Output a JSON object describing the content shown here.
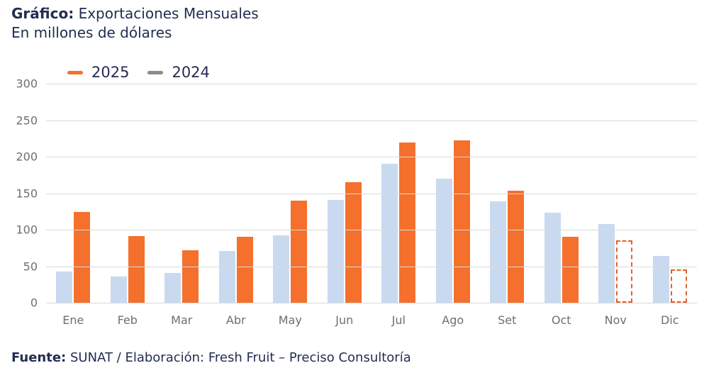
{
  "header": {
    "title_prefix": "Gráfico:",
    "title": "Exportaciones Mensuales",
    "subtitle": "En millones de dólares"
  },
  "legend": {
    "position": "top-left",
    "items": [
      {
        "label": "2025",
        "marker_color": "#F4702C"
      },
      {
        "label": "2024",
        "marker_color": "#8C8C8C"
      }
    ]
  },
  "footer": {
    "source_prefix": "Fuente:",
    "source_text": "SUNAT / Elaboración: Fresh Fruit – Preciso Consultoría"
  },
  "colors": {
    "navy": "#232D52",
    "axis-gray": "#6F6F6F",
    "grid": "#D9D9D9",
    "orange": "#F4702C",
    "light-blue": "#C9DAF0"
  },
  "chart_data": {
    "type": "bar",
    "title": "Gráfico: Exportaciones Mensuales",
    "subtitle": "En millones de dólares",
    "xlabel": "",
    "ylabel": "Millones de dólares",
    "ylim": [
      0,
      300
    ],
    "yticks": [
      0,
      50,
      100,
      150,
      200,
      250,
      300
    ],
    "grid": "horizontal",
    "legend_position": "top-left",
    "categories": [
      "Ene",
      "Feb",
      "Mar",
      "Abr",
      "May",
      "Jun",
      "Jul",
      "Ago",
      "Set",
      "Oct",
      "Nov",
      "Dic"
    ],
    "bar_order": [
      "2024",
      "2025"
    ],
    "series": [
      {
        "name": "2025",
        "color": "#F4702C",
        "values": [
          124,
          91,
          72,
          90,
          140,
          165,
          219,
          222,
          153,
          90,
          85,
          46
        ],
        "projected_categories": [
          "Nov",
          "Dic"
        ],
        "projected_style": "dashed-outline",
        "projected_border_color": "#E7602B"
      },
      {
        "name": "2024",
        "color": "#C9DAF0",
        "values": [
          43,
          36,
          41,
          71,
          92,
          141,
          190,
          170,
          139,
          123,
          108,
          64
        ],
        "projected_categories": []
      }
    ]
  }
}
